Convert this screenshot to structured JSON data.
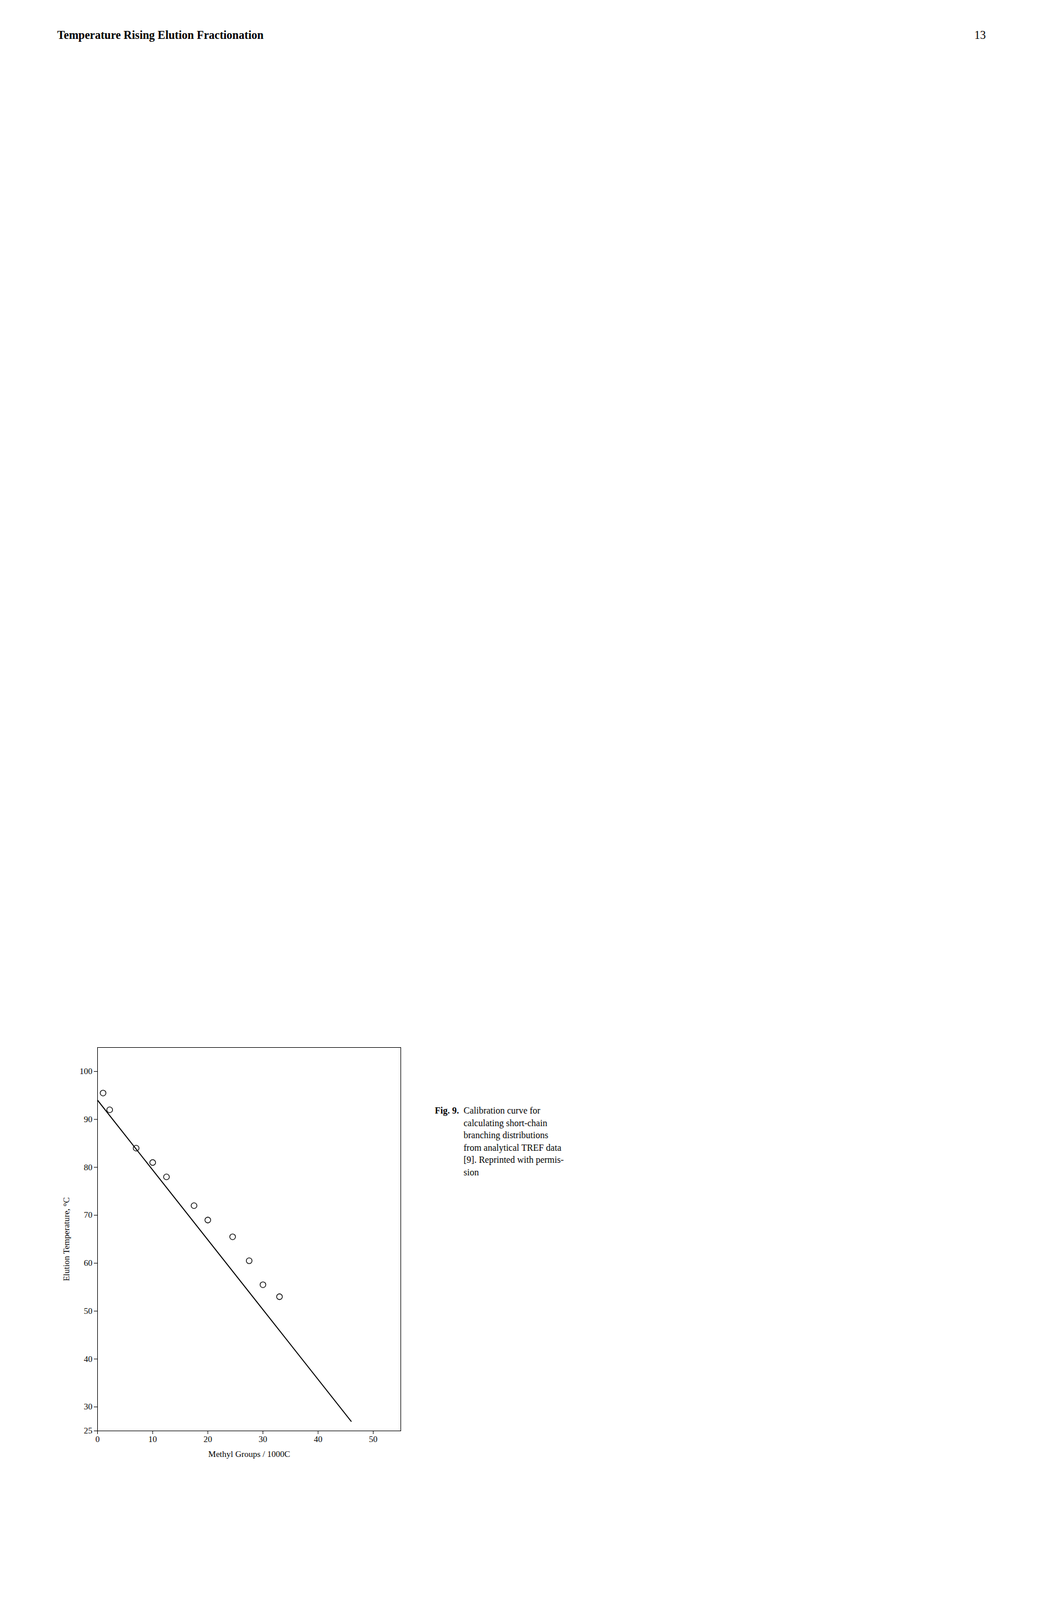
{
  "chart_data": {
    "type": "scatter",
    "title": "Temperature Rising Elution Fractionation",
    "annotations": [
      "13",
      "Fig. 9.",
      "Calibration curve for\ncalculating short-chain\nbranching distributions\nfrom analytical TREF data\n[9]. Reprinted with permis-\nsion"
    ],
    "xlabel": "Methyl Groups / 1000C",
    "ylabel": "Elution Temperature, °C",
    "xlim": [
      0,
      55
    ],
    "ylim": [
      25,
      105
    ],
    "xticks": [
      0,
      10,
      20,
      30,
      40,
      50
    ],
    "yticks": [
      25,
      30,
      40,
      50,
      60,
      70,
      80,
      90,
      100
    ],
    "grid": false,
    "series": [
      {
        "type": "scatter",
        "marker": "circle",
        "color": "#000000",
        "x": [
          1.0,
          2.2,
          7.0,
          10.0,
          12.5,
          17.5,
          20.0,
          24.5,
          27.5,
          30.0,
          33.0
        ],
        "values": [
          95.5,
          92.0,
          84.0,
          81.0,
          78.0,
          72.0,
          69.0,
          65.5,
          60.5,
          55.5,
          53.0
        ]
      },
      {
        "type": "line",
        "line_style": "solid",
        "color": "#000000",
        "x": [
          0.0,
          46.0
        ],
        "values": [
          94.0,
          27.0
        ]
      }
    ]
  }
}
